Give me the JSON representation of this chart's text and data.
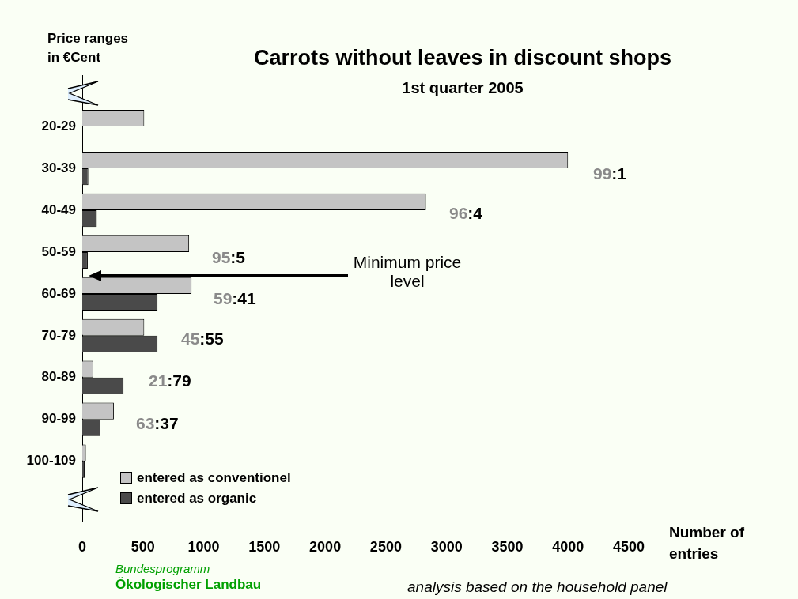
{
  "chart_data": {
    "type": "bar",
    "orientation": "horizontal",
    "title": "Carrots without leaves in discount shops",
    "subtitle": "1st quarter 2005",
    "ylabel": "Price ranges in €Cent",
    "xlabel": "Number of entries",
    "categories": [
      "20-29",
      "30-39",
      "40-49",
      "50-59",
      "60-69",
      "70-79",
      "80-89",
      "90-99",
      "100-109"
    ],
    "series": [
      {
        "name": "entered as conventionel",
        "color": "#c4c4c4",
        "values": [
          510,
          4000,
          2830,
          880,
          900,
          510,
          90,
          260,
          30
        ]
      },
      {
        "name": "entered as organic",
        "color": "#4a4a4a",
        "values": [
          null,
          50,
          120,
          45,
          620,
          620,
          340,
          150,
          20
        ]
      }
    ],
    "xlim": [
      0,
      4500
    ],
    "xticks": [
      0,
      500,
      1000,
      1500,
      2000,
      2500,
      3000,
      3500,
      4000,
      4500
    ],
    "legend": "bottom left",
    "grid": false,
    "annotations": [
      "99:1",
      "96:4",
      "95:5",
      "59:41",
      "45:55",
      "21:79",
      "63:37",
      "Minimum price level",
      "Bundesprogramm",
      "Ökologischer Landbau",
      "analysis based on the household panel"
    ]
  }
}
